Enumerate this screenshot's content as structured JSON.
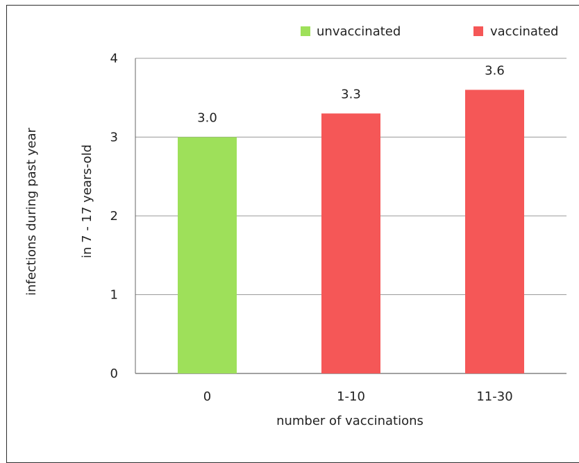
{
  "chart_data": {
    "type": "bar",
    "categories": [
      "0",
      "1-10",
      "11-30"
    ],
    "values": [
      3.0,
      3.3,
      3.6
    ],
    "data_labels": [
      "3.0",
      "3.3",
      "3.6"
    ],
    "bar_colors": [
      "#9ee05a",
      "#f55757"
    ],
    "bar_groups": [
      "unvaccinated",
      "vaccinated",
      "vaccinated"
    ],
    "ylim": [
      0,
      4
    ],
    "yticks": [
      0,
      1,
      2,
      3,
      4
    ],
    "ytick_labels": [
      "0",
      "1",
      "2",
      "3",
      "4"
    ],
    "xlabel": "number of vaccinations",
    "ylabel": "in 7 - 17 years-old",
    "ylabel_outer": "infections during past year",
    "legend": [
      {
        "label": "unvaccinated",
        "color": "#9ee05a"
      },
      {
        "label": "vaccinated",
        "color": "#f55757"
      }
    ],
    "legend_position": "top-right",
    "grid": true
  }
}
